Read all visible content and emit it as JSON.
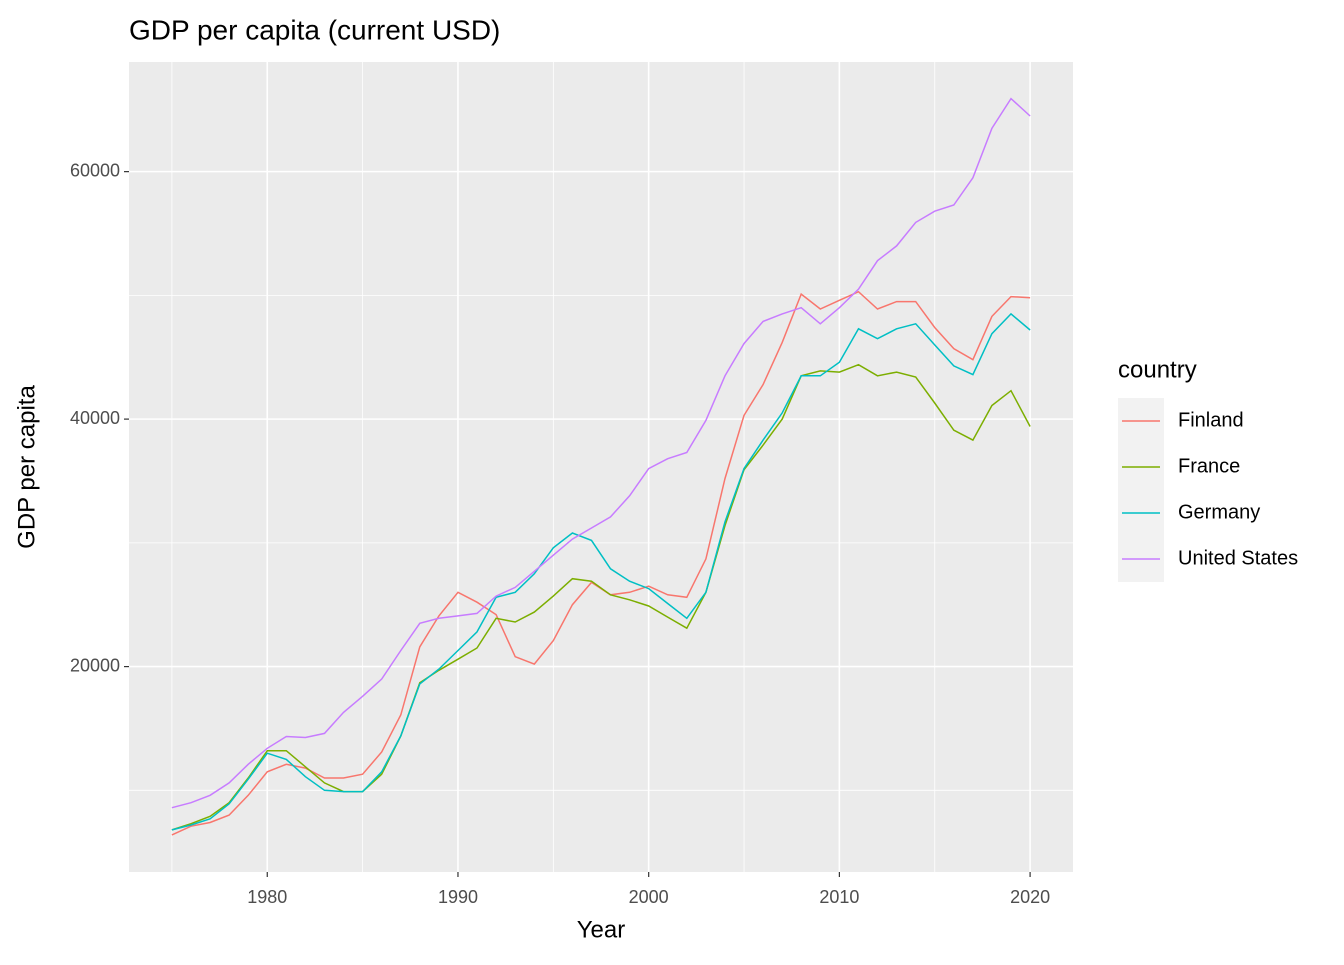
{
  "chart_data": {
    "type": "line",
    "title": "GDP per capita (current USD)",
    "x_label": "Year",
    "y_label": "GDP per capita",
    "x": [
      1975,
      1976,
      1977,
      1978,
      1979,
      1980,
      1981,
      1982,
      1983,
      1984,
      1985,
      1986,
      1987,
      1988,
      1989,
      1990,
      1991,
      1992,
      1993,
      1994,
      1995,
      1996,
      1997,
      1998,
      1999,
      2000,
      2001,
      2002,
      2003,
      2004,
      2005,
      2006,
      2007,
      2008,
      2009,
      2010,
      2011,
      2012,
      2013,
      2014,
      2015,
      2016,
      2017,
      2018,
      2019,
      2020
    ],
    "series": [
      {
        "name": "Finland",
        "color": "#F8766D",
        "values": [
          6400,
          7100,
          7400,
          8000,
          9600,
          11500,
          12100,
          11800,
          11000,
          11000,
          11300,
          13100,
          16100,
          21600,
          24100,
          26000,
          25200,
          24200,
          20800,
          20200,
          22100,
          25000,
          26800,
          25800,
          26000,
          26500,
          25800,
          25600,
          28700,
          35200,
          40300,
          42800,
          46200,
          50100,
          48900,
          49600,
          50300,
          48900,
          49500,
          49500,
          47400,
          45700,
          44800,
          48300,
          49900,
          49800
        ]
      },
      {
        "name": "France",
        "color": "#7CAE00",
        "values": [
          6800,
          7300,
          7900,
          9000,
          11000,
          13200,
          13200,
          11900,
          10600,
          9900,
          9900,
          11300,
          14400,
          18700,
          19700,
          20600,
          21500,
          23900,
          23600,
          24400,
          25700,
          27100,
          26900,
          25800,
          25400,
          24900,
          24000,
          23100,
          26000,
          31400,
          35900,
          37900,
          40000,
          43500,
          43900,
          43800,
          44400,
          43500,
          43800,
          43400,
          41300,
          39100,
          38300,
          41100,
          42300,
          39400
        ]
      },
      {
        "name": "Germany",
        "color": "#00BFC4",
        "values": [
          6800,
          7200,
          7700,
          8900,
          10900,
          13000,
          12500,
          11100,
          10000,
          9900,
          9900,
          11500,
          14400,
          18600,
          19800,
          21300,
          22800,
          25600,
          26000,
          27500,
          29600,
          30800,
          30200,
          27900,
          26900,
          26300,
          25100,
          23900,
          26000,
          31700,
          36000,
          38300,
          40500,
          43500,
          43500,
          44600,
          47300,
          46500,
          47300,
          47700,
          46000,
          44300,
          43600,
          46900,
          48500,
          47200
        ]
      },
      {
        "name": "United States",
        "color": "#C77CFF",
        "values": [
          8600,
          9000,
          9600,
          10600,
          12100,
          13400,
          14350,
          14270,
          14600,
          16300,
          17600,
          19000,
          21300,
          23500,
          23900,
          24100,
          24300,
          25700,
          26400,
          27700,
          29000,
          30300,
          31200,
          32100,
          33800,
          36000,
          36800,
          37300,
          39900,
          43500,
          46100,
          47900,
          48500,
          49000,
          47700,
          49000,
          50500,
          52800,
          54000,
          55900,
          56800,
          57300,
          59500,
          63500,
          65900,
          64500
        ]
      }
    ],
    "xlim": [
      1972.75,
      2022.25
    ],
    "xticks": [
      1980,
      1990,
      2000,
      2010,
      2020
    ],
    "x_minor_grid": [
      1975,
      1985,
      1995,
      2005,
      2015
    ],
    "ylim": [
      3400,
      68860
    ],
    "yticks": [
      20000,
      40000,
      60000
    ],
    "y_minor_grid": [
      10000,
      30000,
      50000
    ],
    "grid": true,
    "legend_title": "country",
    "legend_position": "right"
  }
}
